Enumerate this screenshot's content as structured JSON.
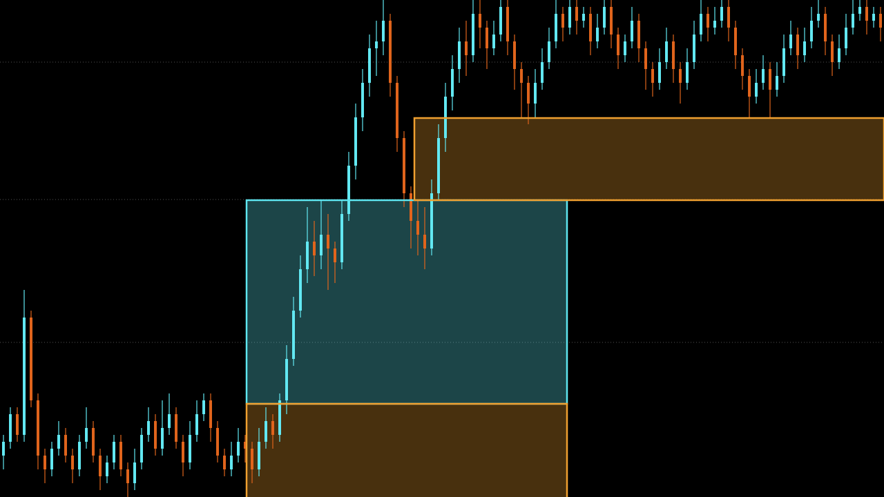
{
  "chart_data": {
    "type": "candlestick",
    "xlim": [
      0,
      128
    ],
    "ylim": [
      0,
      72
    ],
    "yticks": [
      63,
      43.1,
      22.4
    ],
    "grid": true,
    "up_color": "#62e8f2",
    "down_color": "#e0641c",
    "zones": [
      {
        "x": [
          35.7,
          82.1
        ],
        "y": [
          13.5,
          43
        ],
        "color": "#5ee6f0"
      },
      {
        "x": [
          35.7,
          82.1
        ],
        "y": [
          -1,
          13.5
        ],
        "color": "#f0a030"
      },
      {
        "x": [
          60,
          128
        ],
        "y": [
          43,
          54.9
        ],
        "color": "#f0a030"
      }
    ],
    "ohlc": [
      [
        6,
        9,
        4,
        8
      ],
      [
        8,
        13,
        7,
        12
      ],
      [
        12,
        13,
        8,
        9
      ],
      [
        9,
        30,
        8,
        26
      ],
      [
        26,
        27,
        13,
        14
      ],
      [
        14,
        15,
        4,
        6
      ],
      [
        6,
        7,
        2,
        4
      ],
      [
        4,
        8,
        3,
        7
      ],
      [
        7,
        11,
        6,
        9
      ],
      [
        9,
        10,
        5,
        6
      ],
      [
        6,
        7,
        2,
        4
      ],
      [
        4,
        9,
        3,
        8
      ],
      [
        8,
        13,
        7,
        10
      ],
      [
        10,
        11,
        5,
        6
      ],
      [
        6,
        7,
        1,
        3
      ],
      [
        3,
        6,
        2,
        5
      ],
      [
        5,
        9,
        4,
        8
      ],
      [
        8,
        9,
        3,
        4
      ],
      [
        4,
        5,
        0,
        2
      ],
      [
        2,
        7,
        1,
        5
      ],
      [
        5,
        10,
        4,
        9
      ],
      [
        9,
        13,
        8,
        11
      ],
      [
        11,
        12,
        6,
        7
      ],
      [
        7,
        14,
        6,
        10
      ],
      [
        10,
        15,
        9,
        12
      ],
      [
        12,
        13,
        7,
        8
      ],
      [
        8,
        9,
        3,
        5
      ],
      [
        5,
        11,
        4,
        9
      ],
      [
        9,
        14,
        8,
        12
      ],
      [
        12,
        15,
        11,
        14
      ],
      [
        14,
        15,
        8,
        10
      ],
      [
        10,
        11,
        5,
        6
      ],
      [
        6,
        7,
        3,
        4
      ],
      [
        4,
        8,
        3,
        6
      ],
      [
        6,
        10,
        5,
        8
      ],
      [
        8,
        9,
        5,
        7
      ],
      [
        7,
        8,
        2,
        4
      ],
      [
        4,
        10,
        3,
        8
      ],
      [
        8,
        13,
        7,
        11
      ],
      [
        11,
        12,
        7,
        9
      ],
      [
        9,
        15,
        8,
        14
      ],
      [
        14,
        22,
        12,
        20
      ],
      [
        20,
        29,
        19,
        27
      ],
      [
        27,
        35,
        26,
        33
      ],
      [
        33,
        42,
        31,
        37
      ],
      [
        37,
        40,
        32,
        35
      ],
      [
        35,
        43,
        33,
        38
      ],
      [
        38,
        41,
        30,
        36
      ],
      [
        36,
        37,
        31,
        34
      ],
      [
        34,
        43,
        33,
        41
      ],
      [
        41,
        50,
        40,
        48
      ],
      [
        48,
        57,
        46,
        55
      ],
      [
        55,
        62,
        53,
        60
      ],
      [
        60,
        67,
        58,
        65
      ],
      [
        65,
        69,
        61,
        66
      ],
      [
        66,
        72,
        64,
        69
      ],
      [
        69,
        70,
        58,
        60
      ],
      [
        60,
        61,
        50,
        52
      ],
      [
        52,
        53,
        42,
        44
      ],
      [
        44,
        45,
        36,
        40
      ],
      [
        40,
        43,
        35,
        38
      ],
      [
        38,
        42,
        33,
        36
      ],
      [
        36,
        46,
        35,
        44
      ],
      [
        44,
        54,
        43,
        52
      ],
      [
        52,
        60,
        50,
        58
      ],
      [
        58,
        64,
        56,
        62
      ],
      [
        62,
        68,
        60,
        66
      ],
      [
        66,
        69,
        61,
        64
      ],
      [
        64,
        72,
        63,
        70
      ],
      [
        70,
        72,
        65,
        68
      ],
      [
        68,
        69,
        62,
        65
      ],
      [
        65,
        69,
        64,
        67
      ],
      [
        67,
        72,
        66,
        71
      ],
      [
        71,
        72,
        64,
        66
      ],
      [
        66,
        67,
        59,
        62
      ],
      [
        62,
        63,
        55,
        60
      ],
      [
        60,
        61,
        54,
        57
      ],
      [
        57,
        62,
        55,
        60
      ],
      [
        60,
        65,
        59,
        63
      ],
      [
        63,
        68,
        62,
        66
      ],
      [
        66,
        72,
        65,
        70
      ],
      [
        70,
        71,
        66,
        68
      ],
      [
        68,
        72,
        67,
        71
      ],
      [
        71,
        72,
        67,
        69
      ],
      [
        69,
        71,
        68,
        70
      ],
      [
        70,
        71,
        64,
        66
      ],
      [
        66,
        70,
        65,
        68
      ],
      [
        68,
        72,
        67,
        71
      ],
      [
        71,
        72,
        65,
        67
      ],
      [
        67,
        68,
        62,
        64
      ],
      [
        64,
        67,
        63,
        66
      ],
      [
        66,
        71,
        65,
        69
      ],
      [
        69,
        70,
        63,
        65
      ],
      [
        65,
        66,
        59,
        62
      ],
      [
        62,
        63,
        58,
        60
      ],
      [
        60,
        65,
        59,
        63
      ],
      [
        63,
        68,
        62,
        66
      ],
      [
        66,
        67,
        60,
        62
      ],
      [
        62,
        63,
        57,
        60
      ],
      [
        60,
        65,
        59,
        63
      ],
      [
        63,
        69,
        62,
        67
      ],
      [
        67,
        72,
        66,
        70
      ],
      [
        70,
        71,
        66,
        68
      ],
      [
        68,
        71,
        67,
        69
      ],
      [
        69,
        72,
        68,
        71
      ],
      [
        71,
        72,
        66,
        68
      ],
      [
        68,
        69,
        62,
        64
      ],
      [
        64,
        65,
        59,
        61
      ],
      [
        61,
        62,
        55,
        58
      ],
      [
        58,
        62,
        57,
        60
      ],
      [
        60,
        64,
        59,
        62
      ],
      [
        62,
        63,
        55,
        59
      ],
      [
        59,
        63,
        58,
        61
      ],
      [
        61,
        67,
        60,
        65
      ],
      [
        65,
        69,
        64,
        67
      ],
      [
        67,
        68,
        62,
        64
      ],
      [
        64,
        68,
        63,
        66
      ],
      [
        66,
        71,
        65,
        69
      ],
      [
        69,
        72,
        68,
        70
      ],
      [
        70,
        71,
        64,
        66
      ],
      [
        66,
        67,
        61,
        63
      ],
      [
        63,
        67,
        62,
        65
      ],
      [
        65,
        70,
        64,
        68
      ],
      [
        68,
        72,
        67,
        70
      ],
      [
        70,
        72,
        69,
        71
      ],
      [
        71,
        72,
        67,
        69
      ],
      [
        69,
        71,
        68,
        70
      ],
      [
        70,
        71,
        66,
        68
      ]
    ]
  }
}
